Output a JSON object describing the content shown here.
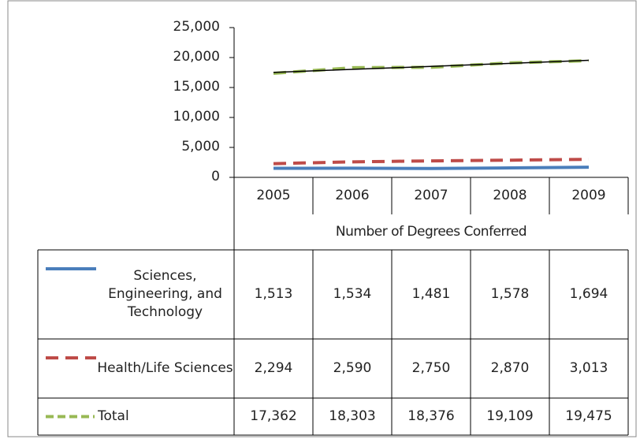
{
  "chart_data": {
    "type": "line",
    "x_label": "Number of Degrees Conferred",
    "categories": [
      "2005",
      "2006",
      "2007",
      "2008",
      "2009"
    ],
    "ylim": [
      0,
      25000
    ],
    "yticks": [
      0,
      {
        "value": 5000,
        "label": "5,000"
      },
      {
        "value": 10000,
        "label": "10,000"
      },
      {
        "value": 15000,
        "label": "15,000"
      },
      {
        "value": 20000,
        "label": "20,000"
      },
      {
        "value": 25000,
        "label": "25,000"
      }
    ],
    "series": [
      {
        "name": "Sciences, Engineering, and Technology",
        "color": "#4a7ebb",
        "dash": "solid",
        "values": [
          1513,
          1534,
          1481,
          1578,
          1694
        ],
        "value_labels": [
          "1,513",
          "1,534",
          "1,481",
          "1,578",
          "1,694"
        ]
      },
      {
        "name": "Health/Life Sciences",
        "color": "#be4b48",
        "dash": "dashed",
        "values": [
          2294,
          2590,
          2750,
          2870,
          3013
        ],
        "value_labels": [
          "2,294",
          "2,590",
          "2,750",
          "2,870",
          "3,013"
        ]
      },
      {
        "name": "Total",
        "color": "#98b954",
        "dash": "dashed",
        "trendline": true,
        "trendline_color": "#000000",
        "values": [
          17362,
          18303,
          18376,
          19109,
          19475
        ],
        "value_labels": [
          "17,362",
          "18,303",
          "18,376",
          "19,109",
          "19,475"
        ]
      }
    ]
  }
}
